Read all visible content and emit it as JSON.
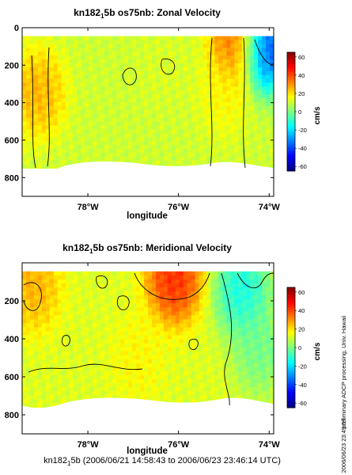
{
  "chart_data": [
    {
      "type": "heatmap",
      "title_parts": [
        "kn182",
        "1",
        "5b os75nb: Zonal Velocity"
      ],
      "xlabel": "longitude",
      "ylabel": "",
      "xlim": [
        -79.45,
        -73.9
      ],
      "ylim": [
        900,
        0
      ],
      "x_ticks": [
        {
          "value": -78,
          "label": "78°W"
        },
        {
          "value": -76,
          "label": "76°W"
        },
        {
          "value": -74,
          "label": "74°W"
        }
      ],
      "y_ticks": [
        0,
        200,
        400,
        600,
        800
      ],
      "colorbar": {
        "min": -65,
        "max": 65,
        "ticks": [
          60,
          40,
          20,
          0,
          -20,
          -40,
          -60
        ],
        "label": "cm/s",
        "colormap": "jet"
      },
      "data_depth_range": [
        45,
        750
      ],
      "background_value_cm_s": 10,
      "features": [
        {
          "lon": -79.1,
          "depth": 350,
          "value_cm_s": 30
        },
        {
          "lon": -76.3,
          "depth": 200,
          "value_cm_s": 12
        },
        {
          "lon": -75.0,
          "depth": 350,
          "value_cm_s": 18
        },
        {
          "lon": -74.7,
          "depth": 80,
          "value_cm_s": 45
        },
        {
          "lon": -74.1,
          "depth": 100,
          "value_cm_s": -55
        }
      ]
    },
    {
      "type": "heatmap",
      "title_parts": [
        "kn182",
        "1",
        "5b os75nb: Meridional Velocity"
      ],
      "xlabel": "longitude",
      "ylabel": "",
      "xlim": [
        -79.45,
        -73.9
      ],
      "ylim": [
        900,
        0
      ],
      "x_ticks": [
        {
          "value": -78,
          "label": "78°W"
        },
        {
          "value": -76,
          "label": "76°W"
        },
        {
          "value": -74,
          "label": "74°W"
        }
      ],
      "y_ticks": [
        200,
        400,
        600,
        800
      ],
      "colorbar": {
        "min": -65,
        "max": 65,
        "ticks": [
          60,
          40,
          20,
          0,
          -20,
          -40,
          -60
        ],
        "label": "cm/s",
        "colormap": "jet"
      },
      "data_depth_range": [
        45,
        760
      ],
      "background_value_cm_s": 12,
      "features": [
        {
          "lon": -76.1,
          "depth": 80,
          "value_cm_s": 52
        },
        {
          "lon": -79.2,
          "depth": 120,
          "value_cm_s": 30
        },
        {
          "lon": -74.6,
          "depth": 150,
          "value_cm_s": -20
        },
        {
          "lon": -74.2,
          "depth": 450,
          "value_cm_s": -5
        },
        {
          "lon": -76.9,
          "depth": 500,
          "value_cm_s": 18
        }
      ]
    }
  ],
  "side_text_1": "preliminary ADCP processing,  Univ. Hawaii",
  "side_text_2": "2006/06/23 23:49:57",
  "footer": {
    "prefix": "kn182",
    "subscript": "1",
    "suffix": "5b (2006/06/21 14:58:43 to 2006/06/23 23:46:14 UTC)"
  }
}
